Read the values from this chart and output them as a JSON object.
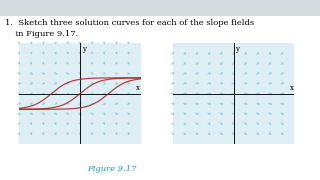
{
  "title_text": "1.  Sketch three solution curves for each of the slope fields\n    in Figure 9.17.",
  "figure_caption": "Figure 9.17",
  "toolbar_color": "#d4dce0",
  "page_bg": "#ffffff",
  "content_bg": "#ffffff",
  "left_plot": {
    "xlim": [
      -3.2,
      3.2
    ],
    "ylim": [
      -3.2,
      3.2
    ],
    "arrow_color": "#88c8d8",
    "axis_color": "#111111",
    "curve_color": "#aa2222",
    "curve_alpha": 0.85
  },
  "right_plot": {
    "xlim": [
      -3.2,
      3.2
    ],
    "ylim": [
      -3.2,
      3.2
    ],
    "arrow_color": "#88c8d8",
    "axis_color": "#111111",
    "curve_color": "#aa2222",
    "curve_alpha": 0.85
  },
  "caption_color": "#1a9ab0",
  "caption_fontsize": 6.0,
  "title_fontsize": 6.0,
  "plot_bg": "#ddeef4",
  "n_arrows": 11
}
